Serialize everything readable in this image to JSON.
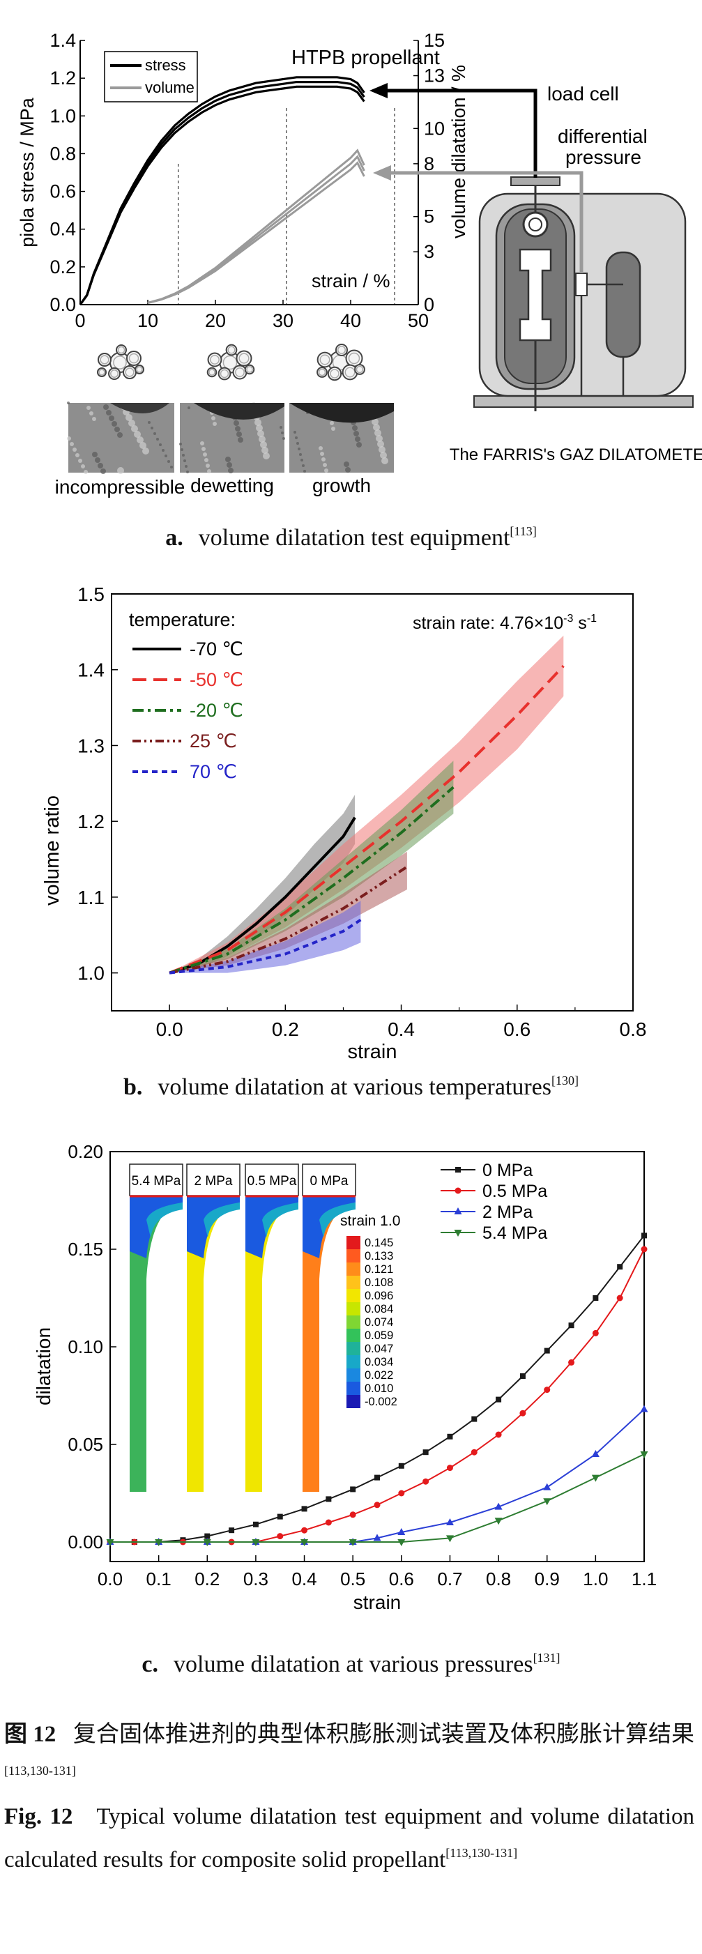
{
  "panel_a": {
    "chart_data": {
      "type": "line",
      "title": "HTPB propellant",
      "xlabel": "strain / %",
      "ylabel_left": "piola stress / MPa",
      "ylabel_right": "volume dilatation / %",
      "xlim": [
        0,
        50
      ],
      "ylim_left": [
        0,
        1.4
      ],
      "ylim_right": [
        0,
        15
      ],
      "xticks": [
        "0",
        "10",
        "20",
        "30",
        "40",
        "50"
      ],
      "yticks_left": [
        "0.0",
        "0.2",
        "0.4",
        "0.6",
        "0.8",
        "1.0",
        "1.2",
        "1.4"
      ],
      "yticks_right": [
        "0",
        "3",
        "5",
        "8",
        "10",
        "13",
        "15"
      ],
      "yticks_right_values": [
        0,
        3,
        5,
        8,
        10,
        13,
        15
      ],
      "legend": [
        "stress",
        "volume"
      ],
      "series": [
        {
          "name": "stress",
          "color": "#000000",
          "axis": "left",
          "x": [
            0,
            1,
            2,
            4,
            6,
            8,
            10,
            12,
            14,
            16,
            18,
            20,
            22,
            24,
            26,
            28,
            30,
            32,
            34,
            36,
            38,
            40,
            41,
            42
          ],
          "y": [
            0,
            0.05,
            0.16,
            0.33,
            0.5,
            0.63,
            0.75,
            0.85,
            0.93,
            0.99,
            1.04,
            1.08,
            1.11,
            1.13,
            1.15,
            1.16,
            1.17,
            1.18,
            1.18,
            1.18,
            1.18,
            1.17,
            1.15,
            1.1
          ]
        },
        {
          "name": "volume",
          "color": "#9a9a9a",
          "axis": "right",
          "x": [
            10,
            12,
            14,
            16,
            18,
            20,
            22,
            24,
            26,
            28,
            30,
            32,
            34,
            36,
            38,
            40,
            41,
            42
          ],
          "y": [
            0.1,
            0.3,
            0.6,
            1.0,
            1.5,
            2.0,
            2.6,
            3.2,
            3.8,
            4.4,
            5.0,
            5.6,
            6.2,
            6.8,
            7.4,
            8.0,
            8.4,
            7.6
          ]
        }
      ],
      "phases": [
        "incompressible",
        "dewetting",
        "growth"
      ]
    },
    "labels": {
      "load_cell": "load cell",
      "differential_1": "differential",
      "differential_2": "pressure",
      "dilatometer": "The FARRIS's GAZ DILATOMETER"
    },
    "caption_letter": "a.",
    "caption_text": "volume dilatation test equipment",
    "caption_ref": "[113]"
  },
  "panel_b": {
    "chart_data": {
      "type": "line",
      "xlabel": "strain",
      "ylabel": "volume ratio",
      "xlim": [
        -0.1,
        0.8
      ],
      "ylim": [
        0.95,
        1.5
      ],
      "xticks": [
        0.0,
        0.2,
        0.4,
        0.6,
        0.8
      ],
      "yticks": [
        1.0,
        1.1,
        1.2,
        1.3,
        1.4,
        1.5
      ],
      "legend_title": "temperature:",
      "annotation": "strain rate: 4.76×10",
      "annotation_exp": "-3",
      "annotation_unit": " s",
      "annotation_unit_exp": "-1",
      "series": [
        {
          "name": "-70 ℃",
          "color": "#000000",
          "dash": "",
          "band": "#7a7a7a",
          "x": [
            0,
            0.05,
            0.1,
            0.15,
            0.2,
            0.25,
            0.3,
            0.32
          ],
          "y": [
            1.0,
            1.012,
            1.035,
            1.065,
            1.1,
            1.14,
            1.18,
            1.205
          ],
          "lo": [
            1.0,
            1.006,
            1.022,
            1.045,
            1.075,
            1.11,
            1.145,
            1.17
          ],
          "hi": [
            1.0,
            1.018,
            1.048,
            1.085,
            1.125,
            1.17,
            1.21,
            1.235
          ]
        },
        {
          "name": "-50 ℃",
          "color": "#e8312d",
          "dash": "20,10",
          "band": "#f17a78",
          "x": [
            0,
            0.1,
            0.2,
            0.3,
            0.4,
            0.5,
            0.6,
            0.68
          ],
          "y": [
            1.0,
            1.03,
            1.08,
            1.14,
            1.2,
            1.265,
            1.34,
            1.405
          ],
          "lo": [
            1.0,
            1.02,
            1.06,
            1.11,
            1.165,
            1.225,
            1.295,
            1.365
          ],
          "hi": [
            1.0,
            1.04,
            1.1,
            1.17,
            1.235,
            1.305,
            1.385,
            1.445
          ]
        },
        {
          "name": "-20 ℃",
          "color": "#1f6e1f",
          "dash": "16,6,4,6",
          "band": "#6a9a5a",
          "x": [
            0,
            0.1,
            0.2,
            0.3,
            0.4,
            0.49
          ],
          "y": [
            1.0,
            1.025,
            1.07,
            1.125,
            1.185,
            1.245
          ],
          "lo": [
            1.0,
            1.018,
            1.055,
            1.1,
            1.155,
            1.21
          ],
          "hi": [
            1.0,
            1.032,
            1.085,
            1.15,
            1.215,
            1.28
          ]
        },
        {
          "name": "25 ℃",
          "color": "#7a1e1e",
          "dash": "12,5,3,5,3,5",
          "band": "#b06060",
          "x": [
            0,
            0.1,
            0.2,
            0.3,
            0.41
          ],
          "y": [
            1.0,
            1.015,
            1.045,
            1.085,
            1.14
          ],
          "lo": [
            1.0,
            1.01,
            1.032,
            1.065,
            1.11
          ],
          "hi": [
            1.0,
            1.02,
            1.058,
            1.105,
            1.16
          ]
        },
        {
          "name": "70 ℃",
          "color": "#2424c8",
          "dash": "8,6",
          "band": "#6a6ae0",
          "x": [
            0,
            0.1,
            0.2,
            0.3,
            0.33
          ],
          "y": [
            1.0,
            1.008,
            1.025,
            1.055,
            1.07
          ],
          "lo": [
            1.0,
            1.0,
            1.01,
            1.03,
            1.04
          ],
          "hi": [
            1.0,
            1.016,
            1.042,
            1.08,
            1.095
          ]
        }
      ]
    },
    "caption_letter": "b.",
    "caption_text": "volume dilatation at various temperatures",
    "caption_ref": "[130]"
  },
  "panel_c": {
    "chart_data": {
      "type": "line",
      "xlabel": "strain",
      "ylabel": "dilatation",
      "xlim": [
        0,
        1.1
      ],
      "ylim": [
        -0.01,
        0.2
      ],
      "xticks": [
        0.0,
        0.1,
        0.2,
        0.3,
        0.4,
        0.5,
        0.6,
        0.7,
        0.8,
        0.9,
        1.0,
        1.1
      ],
      "yticks": [
        0.0,
        0.05,
        0.1,
        0.15,
        0.2
      ],
      "series": [
        {
          "name": "0 MPa",
          "color": "#1a1a1a",
          "marker": "square",
          "x": [
            0,
            0.05,
            0.1,
            0.15,
            0.2,
            0.25,
            0.3,
            0.35,
            0.4,
            0.45,
            0.5,
            0.55,
            0.6,
            0.65,
            0.7,
            0.75,
            0.8,
            0.85,
            0.9,
            0.95,
            1.0,
            1.05,
            1.1
          ],
          "y": [
            0.0,
            0.0,
            0.0,
            0.001,
            0.003,
            0.006,
            0.009,
            0.013,
            0.017,
            0.022,
            0.027,
            0.033,
            0.039,
            0.046,
            0.054,
            0.063,
            0.073,
            0.085,
            0.098,
            0.111,
            0.125,
            0.141,
            0.157
          ]
        },
        {
          "name": "0.5 MPa",
          "color": "#e41a1c",
          "marker": "circle",
          "x": [
            0,
            0.05,
            0.1,
            0.15,
            0.2,
            0.25,
            0.3,
            0.35,
            0.4,
            0.45,
            0.5,
            0.55,
            0.6,
            0.65,
            0.7,
            0.75,
            0.8,
            0.85,
            0.9,
            0.95,
            1.0,
            1.05,
            1.1
          ],
          "y": [
            0.0,
            0.0,
            0.0,
            0.0,
            0.0,
            0.0,
            0.0,
            0.003,
            0.006,
            0.01,
            0.014,
            0.019,
            0.025,
            0.031,
            0.038,
            0.046,
            0.055,
            0.066,
            0.078,
            0.092,
            0.107,
            0.125,
            0.15
          ]
        },
        {
          "name": "2 MPa",
          "color": "#2b3fd6",
          "marker": "triangle-up",
          "x": [
            0,
            0.1,
            0.2,
            0.3,
            0.4,
            0.5,
            0.55,
            0.6,
            0.7,
            0.8,
            0.9,
            1.0,
            1.1
          ],
          "y": [
            0.0,
            0.0,
            0.0,
            0.0,
            0.0,
            0.0,
            0.002,
            0.005,
            0.01,
            0.018,
            0.028,
            0.045,
            0.068
          ]
        },
        {
          "name": "5.4 MPa",
          "color": "#2e7d32",
          "marker": "triangle-down",
          "x": [
            0,
            0.1,
            0.2,
            0.3,
            0.4,
            0.5,
            0.6,
            0.7,
            0.8,
            0.9,
            1.0,
            1.1
          ],
          "y": [
            0.0,
            0.0,
            0.0,
            0.0,
            0.0,
            0.0,
            0.0,
            0.002,
            0.011,
            0.021,
            0.033,
            0.045
          ]
        }
      ],
      "inset": {
        "labels": [
          "5.4 MPa",
          "2 MPa",
          "0.5 MPa",
          "0 MPa"
        ],
        "colorbar_title": "strain 1.0",
        "colorbar_values": [
          "0.145",
          "0.133",
          "0.121",
          "0.108",
          "0.096",
          "0.084",
          "0.074",
          "0.059",
          "0.047",
          "0.034",
          "0.022",
          "0.010",
          "-0.002"
        ],
        "colorbar_colors": [
          "#e31a1c",
          "#ff5a1f",
          "#ff8c1a",
          "#ffc21a",
          "#f2e600",
          "#c7e600",
          "#7fd633",
          "#33c25a",
          "#1fb29a",
          "#18a8c8",
          "#1a88e0",
          "#1a5ae0",
          "#1a1ab4"
        ],
        "column_colors": [
          "#3cb35a",
          "#f0e600",
          "#f0e600",
          "#ff7f1a"
        ]
      }
    },
    "caption_letter": "c.",
    "caption_text": "volume dilatation at various pressures",
    "caption_ref": "[131]"
  },
  "figure_caption": {
    "cn_label": "图 12",
    "cn_text": "复合固体推进剂的典型体积膨胀测试装置及体积膨胀计算结果",
    "cn_ref": "[113,130-131]",
    "en_label": "Fig. 12",
    "en_text": "Typical volume dilatation test equipment and volume dilatation calculated results for composite solid propellant",
    "en_ref": "[113,130-131]"
  }
}
